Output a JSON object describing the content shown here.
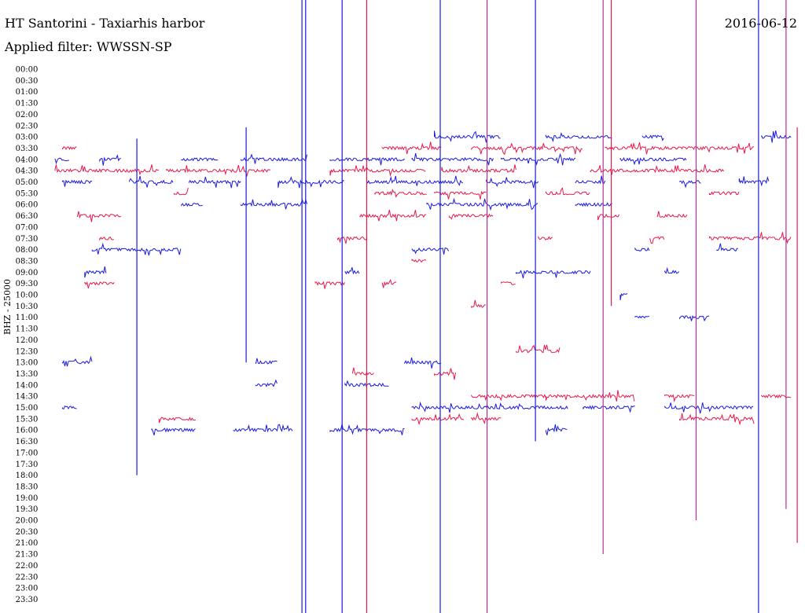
{
  "header": {
    "station": "HT Santorini - Taxiarhis harbor",
    "filter": "Applied filter: WWSSN-SP",
    "date": "2016-06-12",
    "channel_label": "BHZ - 25000"
  },
  "colors": {
    "blue": "#1a1adf",
    "red": "#e8194a",
    "magenta": "#b0309a"
  },
  "chart_data": {
    "type": "helicorder",
    "title": "HT Santorini - Taxiarhis harbor",
    "subtitle": "Applied filter: WWSSN-SP",
    "date": "2016-06-12",
    "ylabel": "BHZ - 25000",
    "row_minutes": 30,
    "grid": false,
    "series_colors": [
      "#1a1adf",
      "#e8194a"
    ],
    "rows": [
      {
        "time": "00:00",
        "segments": []
      },
      {
        "time": "00:30",
        "segments": []
      },
      {
        "time": "01:00",
        "segments": []
      },
      {
        "time": "01:30",
        "segments": []
      },
      {
        "time": "02:00",
        "segments": []
      },
      {
        "time": "02:30",
        "segments": []
      },
      {
        "time": "03:00",
        "segments": [
          [
            0.51,
            0.6
          ],
          [
            0.66,
            0.75
          ],
          [
            0.79,
            0.82
          ],
          [
            0.95,
            0.99
          ]
        ]
      },
      {
        "time": "03:30",
        "segments": [
          [
            0.01,
            0.03
          ],
          [
            0.44,
            0.52
          ],
          [
            0.56,
            0.71
          ],
          [
            0.74,
            0.94
          ]
        ]
      },
      {
        "time": "04:00",
        "segments": [
          [
            0.0,
            0.02
          ],
          [
            0.06,
            0.09
          ],
          [
            0.17,
            0.22
          ],
          [
            0.25,
            0.34
          ],
          [
            0.37,
            0.47
          ],
          [
            0.48,
            0.59
          ],
          [
            0.6,
            0.7
          ],
          [
            0.76,
            0.85
          ]
        ]
      },
      {
        "time": "04:30",
        "segments": [
          [
            0.0,
            0.14
          ],
          [
            0.15,
            0.29
          ],
          [
            0.37,
            0.5
          ],
          [
            0.52,
            0.62
          ],
          [
            0.72,
            0.9
          ]
        ]
      },
      {
        "time": "05:00",
        "segments": [
          [
            0.01,
            0.05
          ],
          [
            0.1,
            0.16
          ],
          [
            0.18,
            0.25
          ],
          [
            0.3,
            0.39
          ],
          [
            0.42,
            0.55
          ],
          [
            0.58,
            0.65
          ],
          [
            0.7,
            0.74
          ],
          [
            0.84,
            0.87
          ],
          [
            0.92,
            0.96
          ]
        ]
      },
      {
        "time": "05:30",
        "segments": [
          [
            0.16,
            0.18
          ],
          [
            0.43,
            0.5
          ],
          [
            0.51,
            0.58
          ],
          [
            0.66,
            0.72
          ],
          [
            0.88,
            0.92
          ]
        ]
      },
      {
        "time": "06:00",
        "segments": [
          [
            0.17,
            0.2
          ],
          [
            0.25,
            0.34
          ],
          [
            0.5,
            0.65
          ],
          [
            0.7,
            0.75
          ]
        ]
      },
      {
        "time": "06:30",
        "segments": [
          [
            0.03,
            0.09
          ],
          [
            0.41,
            0.5
          ],
          [
            0.53,
            0.59
          ],
          [
            0.73,
            0.76
          ],
          [
            0.81,
            0.85
          ]
        ]
      },
      {
        "time": "07:00",
        "segments": []
      },
      {
        "time": "07:30",
        "segments": [
          [
            0.06,
            0.08
          ],
          [
            0.38,
            0.42
          ],
          [
            0.65,
            0.67
          ],
          [
            0.8,
            0.82
          ],
          [
            0.88,
            0.99
          ]
        ]
      },
      {
        "time": "08:00",
        "segments": [
          [
            0.05,
            0.17
          ],
          [
            0.48,
            0.53
          ],
          [
            0.78,
            0.8
          ],
          [
            0.89,
            0.92
          ]
        ]
      },
      {
        "time": "08:30",
        "segments": [
          [
            0.48,
            0.5
          ]
        ]
      },
      {
        "time": "09:00",
        "segments": [
          [
            0.04,
            0.07
          ],
          [
            0.39,
            0.41
          ],
          [
            0.62,
            0.72
          ],
          [
            0.82,
            0.84
          ]
        ]
      },
      {
        "time": "09:30",
        "segments": [
          [
            0.04,
            0.08
          ],
          [
            0.35,
            0.39
          ],
          [
            0.44,
            0.46
          ],
          [
            0.6,
            0.62
          ]
        ]
      },
      {
        "time": "10:00",
        "segments": [
          [
            0.76,
            0.77
          ]
        ]
      },
      {
        "time": "10:30",
        "segments": [
          [
            0.56,
            0.58
          ]
        ]
      },
      {
        "time": "11:00",
        "segments": [
          [
            0.78,
            0.8
          ],
          [
            0.84,
            0.88
          ]
        ]
      },
      {
        "time": "11:30",
        "segments": []
      },
      {
        "time": "12:00",
        "segments": []
      },
      {
        "time": "12:30",
        "segments": [
          [
            0.62,
            0.68
          ]
        ]
      },
      {
        "time": "13:00",
        "segments": [
          [
            0.01,
            0.05
          ],
          [
            0.27,
            0.3
          ],
          [
            0.47,
            0.52
          ]
        ]
      },
      {
        "time": "13:30",
        "segments": [
          [
            0.4,
            0.43
          ],
          [
            0.51,
            0.54
          ]
        ]
      },
      {
        "time": "14:00",
        "segments": [
          [
            0.27,
            0.3
          ],
          [
            0.39,
            0.45
          ]
        ]
      },
      {
        "time": "14:30",
        "segments": [
          [
            0.56,
            0.66
          ],
          [
            0.66,
            0.78
          ],
          [
            0.82,
            0.86
          ],
          [
            0.95,
            0.99
          ]
        ]
      },
      {
        "time": "15:00",
        "segments": [
          [
            0.01,
            0.03
          ],
          [
            0.48,
            0.58
          ],
          [
            0.58,
            0.69
          ],
          [
            0.71,
            0.78
          ],
          [
            0.82,
            0.94
          ]
        ]
      },
      {
        "time": "15:30",
        "segments": [
          [
            0.14,
            0.19
          ],
          [
            0.48,
            0.55
          ],
          [
            0.56,
            0.6
          ],
          [
            0.84,
            0.94
          ]
        ]
      },
      {
        "time": "16:00",
        "segments": [
          [
            0.13,
            0.19
          ],
          [
            0.24,
            0.32
          ],
          [
            0.37,
            0.47
          ],
          [
            0.66,
            0.69
          ]
        ]
      },
      {
        "time": "16:30",
        "segments": []
      },
      {
        "time": "17:00",
        "segments": []
      },
      {
        "time": "17:30",
        "segments": []
      },
      {
        "time": "18:00",
        "segments": []
      },
      {
        "time": "18:30",
        "segments": []
      },
      {
        "time": "19:00",
        "segments": []
      },
      {
        "time": "19:30",
        "segments": []
      },
      {
        "time": "20:00",
        "segments": []
      },
      {
        "time": "20:30",
        "segments": []
      },
      {
        "time": "21:00",
        "segments": []
      },
      {
        "time": "21:30",
        "segments": []
      },
      {
        "time": "22:00",
        "segments": []
      },
      {
        "time": "22:30",
        "segments": []
      },
      {
        "time": "23:00",
        "segments": []
      },
      {
        "time": "23:30",
        "segments": []
      }
    ],
    "spikes": [
      {
        "x": 0.11,
        "start": "03:30",
        "end": "18:00",
        "color": "blue"
      },
      {
        "x": 0.257,
        "start": "03:00",
        "end": "13:00",
        "color": "blue"
      },
      {
        "x": 0.332,
        "start": "00:00",
        "end": "24:00",
        "color": "blue"
      },
      {
        "x": 0.337,
        "start": "00:00",
        "end": "24:00",
        "color": "blue"
      },
      {
        "x": 0.386,
        "start": "00:00",
        "end": "24:00",
        "color": "blue"
      },
      {
        "x": 0.419,
        "start": "00:00",
        "end": "24:00",
        "color": "red"
      },
      {
        "x": 0.518,
        "start": "00:00",
        "end": "24:00",
        "color": "blue"
      },
      {
        "x": 0.581,
        "start": "00:00",
        "end": "24:00",
        "color": "magenta"
      },
      {
        "x": 0.646,
        "start": "00:00",
        "end": "16:30",
        "color": "blue"
      },
      {
        "x": 0.737,
        "start": "00:00",
        "end": "21:30",
        "color": "magenta"
      },
      {
        "x": 0.748,
        "start": "00:00",
        "end": "10:30",
        "color": "red"
      },
      {
        "x": 0.862,
        "start": "00:00",
        "end": "20:00",
        "color": "magenta"
      },
      {
        "x": 0.946,
        "start": "00:00",
        "end": "24:00",
        "color": "blue"
      },
      {
        "x": 0.983,
        "start": "00:00",
        "end": "19:30",
        "color": "magenta"
      },
      {
        "x": 0.998,
        "start": "03:00",
        "end": "21:00",
        "color": "red"
      }
    ]
  }
}
